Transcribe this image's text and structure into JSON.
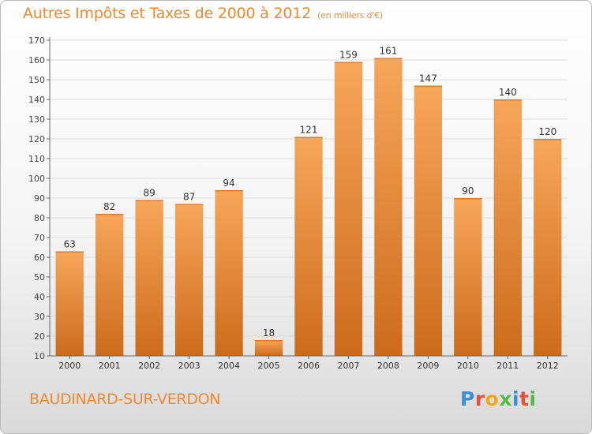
{
  "header": {
    "title": "Autres Impôts et Taxes de 2000 à 2012",
    "unit": "(en milliers d'€)"
  },
  "footer": {
    "commune": "BAUDINARD-SUR-VERDON"
  },
  "logo": {
    "letters": [
      "P",
      "r",
      "o",
      "x",
      "i",
      "t",
      "i"
    ],
    "colors": [
      "#3a8fd6",
      "#e94f3a",
      "#f3a51c",
      "#56b848",
      "#3a8fd6",
      "#e94f3a",
      "#56b848"
    ]
  },
  "colors": {
    "bar_light": "#f7a65a",
    "bar_dark": "#cc6b1a",
    "title": "#f0892e",
    "grid": "#dcdcdc"
  },
  "chart_data": {
    "type": "bar",
    "title": "Autres Impôts et Taxes de 2000 à 2012",
    "subtitle": "(en milliers d'€)",
    "xlabel": "",
    "ylabel": "",
    "categories": [
      "2000",
      "2001",
      "2002",
      "2003",
      "2004",
      "2005",
      "2006",
      "2007",
      "2008",
      "2009",
      "2010",
      "2011",
      "2012"
    ],
    "values": [
      63,
      82,
      89,
      87,
      94,
      18,
      121,
      159,
      161,
      147,
      90,
      140,
      120
    ],
    "ylim": [
      10,
      170
    ],
    "yticks": [
      10,
      20,
      30,
      40,
      50,
      60,
      70,
      80,
      90,
      100,
      110,
      120,
      130,
      140,
      150,
      160,
      170
    ],
    "grid": true,
    "data_labels": true
  }
}
